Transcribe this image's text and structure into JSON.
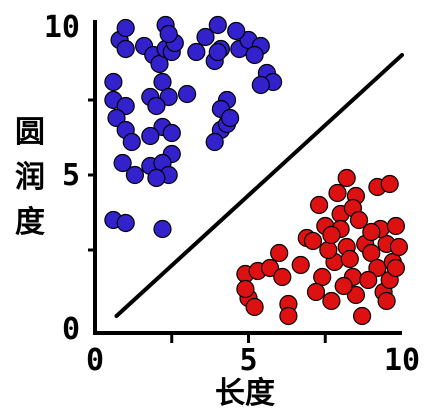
{
  "chart_data": {
    "type": "scatter",
    "xlabel": "长度",
    "ylabel": "圆润度",
    "xlim": [
      0,
      10
    ],
    "ylim": [
      0,
      10
    ],
    "x_ticks": [
      "0",
      "5",
      "10"
    ],
    "y_ticks": [
      "0",
      "5",
      "10"
    ],
    "grid": false,
    "legend": "none",
    "series": [
      {
        "color": "#3322cc",
        "points": [
          [
            0.8,
            9.5
          ],
          [
            1.0,
            9.2
          ],
          [
            0.6,
            8.1
          ],
          [
            0.6,
            7.5
          ],
          [
            1.0,
            7.3
          ],
          [
            0.7,
            6.9
          ],
          [
            1.0,
            6.5
          ],
          [
            1.2,
            6.1
          ],
          [
            0.9,
            5.4
          ],
          [
            1.3,
            5.0
          ],
          [
            1.8,
            5.3
          ],
          [
            0.6,
            3.5
          ],
          [
            1.0,
            3.4
          ],
          [
            1.6,
            9.3
          ],
          [
            1.9,
            9.0
          ],
          [
            2.1,
            8.7
          ],
          [
            2.3,
            9.2
          ],
          [
            2.5,
            9.1
          ],
          [
            2.2,
            8.1
          ],
          [
            2.4,
            7.6
          ],
          [
            1.8,
            7.6
          ],
          [
            2.0,
            7.3
          ],
          [
            2.2,
            6.6
          ],
          [
            2.5,
            6.4
          ],
          [
            1.8,
            6.3
          ],
          [
            2.5,
            5.7
          ],
          [
            2.2,
            5.4
          ],
          [
            2.4,
            5.0
          ],
          [
            2.0,
            4.9
          ],
          [
            2.2,
            3.2
          ],
          [
            2.3,
            10.0
          ],
          [
            2.6,
            9.4
          ],
          [
            3.0,
            7.7
          ],
          [
            3.3,
            9.1
          ],
          [
            3.9,
            8.8
          ],
          [
            4.1,
            9.2
          ],
          [
            4.7,
            9.2
          ],
          [
            5.0,
            9.5
          ],
          [
            5.4,
            9.3
          ],
          [
            5.2,
            9.0
          ],
          [
            3.6,
            9.6
          ],
          [
            4.3,
            7.5
          ],
          [
            4.1,
            7.2
          ],
          [
            4.1,
            6.5
          ],
          [
            4.3,
            6.7
          ],
          [
            4.4,
            6.9
          ],
          [
            5.6,
            8.4
          ],
          [
            5.8,
            8.1
          ],
          [
            5.4,
            8.0
          ],
          [
            3.9,
            6.1
          ],
          [
            4.0,
            9.1
          ],
          [
            1.0,
            9.9
          ],
          [
            2.4,
            9.7
          ],
          [
            4.0,
            10.0
          ],
          [
            4.6,
            9.8
          ]
        ]
      },
      {
        "color": "#dd1111",
        "points": [
          [
            4.9,
            1.7
          ],
          [
            5.3,
            1.8
          ],
          [
            5.0,
            0.9
          ],
          [
            5.2,
            0.6
          ],
          [
            4.9,
            1.2
          ],
          [
            5.7,
            1.9
          ],
          [
            6.1,
            1.6
          ],
          [
            6.0,
            2.4
          ],
          [
            6.3,
            0.7
          ],
          [
            6.3,
            0.3
          ],
          [
            6.7,
            2.0
          ],
          [
            6.9,
            2.9
          ],
          [
            7.1,
            2.8
          ],
          [
            7.3,
            4.0
          ],
          [
            7.5,
            3.3
          ],
          [
            7.4,
            1.6
          ],
          [
            7.2,
            1.1
          ],
          [
            7.7,
            0.8
          ],
          [
            7.8,
            2.1
          ],
          [
            8.0,
            3.7
          ],
          [
            8.0,
            3.2
          ],
          [
            8.2,
            2.6
          ],
          [
            8.3,
            2.2
          ],
          [
            8.4,
            1.6
          ],
          [
            8.5,
            1.0
          ],
          [
            8.7,
            0.3
          ],
          [
            7.9,
            4.4
          ],
          [
            8.2,
            4.9
          ],
          [
            8.5,
            4.3
          ],
          [
            8.4,
            3.9
          ],
          [
            8.6,
            3.5
          ],
          [
            8.8,
            2.7
          ],
          [
            9.0,
            2.4
          ],
          [
            9.2,
            1.9
          ],
          [
            9.4,
            1.1
          ],
          [
            9.5,
            0.8
          ],
          [
            9.6,
            1.5
          ],
          [
            9.7,
            2.1
          ],
          [
            9.5,
            2.7
          ],
          [
            9.3,
            3.2
          ],
          [
            9.9,
            2.6
          ],
          [
            9.8,
            3.3
          ],
          [
            9.2,
            4.6
          ],
          [
            9.6,
            4.7
          ],
          [
            8.1,
            1.3
          ],
          [
            7.6,
            2.5
          ],
          [
            9.0,
            3.1
          ],
          [
            8.9,
            1.5
          ],
          [
            9.8,
            1.9
          ],
          [
            7.7,
            3.0
          ]
        ]
      }
    ],
    "annotations": [
      {
        "type": "line",
        "from": [
          0.7,
          0.3
        ],
        "to": [
          10.0,
          9.0
        ],
        "color": "#000000"
      }
    ]
  }
}
